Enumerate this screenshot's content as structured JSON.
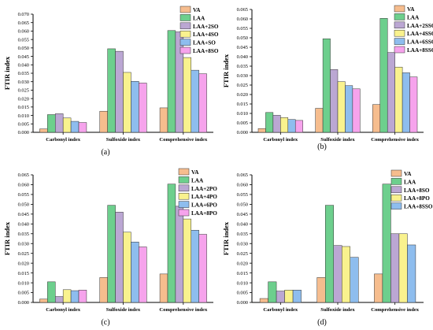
{
  "palette": [
    "#F6BD8E",
    "#6DCF8D",
    "#BBA7D3",
    "#F9F28E",
    "#8EBDEE",
    "#F6A3EC"
  ],
  "chart_data": [
    {
      "type": "bar",
      "panel_label": "(a)",
      "ylabel": "FTIR index",
      "categories": [
        "Carbonyl index",
        "Sulfoxide index",
        "Comprehensive index"
      ],
      "ylim": [
        0,
        0.07
      ],
      "yticks": [
        "0.000",
        "0.005",
        "0.010",
        "0.015",
        "0.020",
        "0.025",
        "0.030",
        "0.035",
        "0.040",
        "0.045",
        "0.050",
        "0.055",
        "0.060",
        "0.065",
        "0.070"
      ],
      "series": [
        {
          "name": "VA",
          "values": [
            0.002,
            0.0125,
            0.0145
          ]
        },
        {
          "name": "LAA",
          "values": [
            0.0105,
            0.0495,
            0.0603
          ]
        },
        {
          "name": "LAA+2SO",
          "values": [
            0.011,
            0.048,
            0.0595
          ]
        },
        {
          "name": "LAA+4SO",
          "values": [
            0.0085,
            0.0355,
            0.0443
          ]
        },
        {
          "name": "LAA+SO",
          "values": [
            0.0065,
            0.0302,
            0.0368
          ]
        },
        {
          "name": "LAA+8SO",
          "values": [
            0.0058,
            0.0292,
            0.0347
          ]
        }
      ]
    },
    {
      "type": "bar",
      "panel_label": "(b)",
      "ylabel": "FTIR index",
      "categories": [
        "Carbonyl index",
        "Sulfoxide index",
        "Comprehensive index"
      ],
      "ylim": [
        0,
        0.065
      ],
      "yticks": [
        "0.000",
        "0.005",
        "0.010",
        "0.015",
        "0.020",
        "0.025",
        "0.030",
        "0.035",
        "0.040",
        "0.045",
        "0.050",
        "0.055",
        "0.060",
        "0.065"
      ],
      "series": [
        {
          "name": "VA",
          "values": [
            0.002,
            0.0127,
            0.0147
          ]
        },
        {
          "name": "LAA",
          "values": [
            0.0105,
            0.0495,
            0.0603
          ]
        },
        {
          "name": "LAA+2SSO",
          "values": [
            0.009,
            0.0332,
            0.0422
          ]
        },
        {
          "name": "LAA+4SSO",
          "values": [
            0.0078,
            0.0268,
            0.0345
          ]
        },
        {
          "name": "LAA+6SSO",
          "values": [
            0.0068,
            0.0247,
            0.0315
          ]
        },
        {
          "name": "LAA+8SSO",
          "values": [
            0.0063,
            0.023,
            0.0293
          ]
        }
      ]
    },
    {
      "type": "bar",
      "panel_label": "(c)",
      "ylabel": "FTIR index",
      "categories": [
        "Carbonyl index",
        "Sulfoxide index",
        "Comprehensive index"
      ],
      "ylim": [
        0,
        0.065
      ],
      "yticks": [
        "0.000",
        "0.005",
        "0.010",
        "0.015",
        "0.020",
        "0.025",
        "0.030",
        "0.035",
        "0.040",
        "0.045",
        "0.050",
        "0.055",
        "0.060",
        "0.065"
      ],
      "series": [
        {
          "name": "VA",
          "values": [
            0.0017,
            0.0127,
            0.0145
          ]
        },
        {
          "name": "LAA",
          "values": [
            0.0105,
            0.0495,
            0.0603
          ]
        },
        {
          "name": "LAA+2PO",
          "values": [
            0.003,
            0.046,
            0.049
          ]
        },
        {
          "name": "LAA+4PO",
          "values": [
            0.0065,
            0.0358,
            0.0425
          ]
        },
        {
          "name": "LAA+6PO",
          "values": [
            0.006,
            0.0308,
            0.0368
          ]
        },
        {
          "name": "LAA+8PO",
          "values": [
            0.0063,
            0.0283,
            0.0347
          ]
        }
      ]
    },
    {
      "type": "bar",
      "panel_label": "(d)",
      "ylabel": "FTIR index",
      "categories": [
        "Carbonyl index",
        "Sulfoxide index",
        "Comprehensive index"
      ],
      "ylim": [
        0,
        0.065
      ],
      "yticks": [
        "0.000",
        "0.005",
        "0.010",
        "0.015",
        "0.020",
        "0.025",
        "0.030",
        "0.035",
        "0.040",
        "0.045",
        "0.050",
        "0.055",
        "0.060",
        "0.065"
      ],
      "series": [
        {
          "name": "VA",
          "values": [
            0.002,
            0.0127,
            0.0145
          ]
        },
        {
          "name": "LAA",
          "values": [
            0.0105,
            0.0495,
            0.0603
          ]
        },
        {
          "name": "LAA+8SO",
          "values": [
            0.0058,
            0.029,
            0.035
          ]
        },
        {
          "name": "LAA+8PO",
          "values": [
            0.0063,
            0.0285,
            0.035
          ]
        },
        {
          "name": "LAA+8SSO",
          "values": [
            0.0063,
            0.023,
            0.0293
          ]
        }
      ]
    }
  ]
}
